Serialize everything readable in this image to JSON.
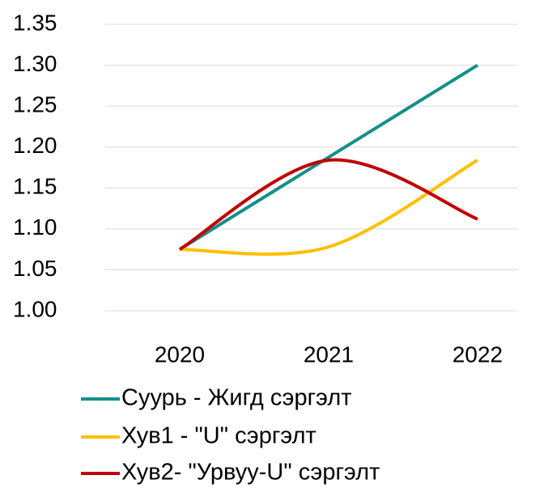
{
  "chart_data": {
    "type": "line",
    "categories": [
      "2020",
      "2021",
      "2022"
    ],
    "series": [
      {
        "name": "Суурь - Жигд сэргэлт",
        "color": "#148f8a",
        "values": [
          1.075,
          1.1875,
          1.3
        ]
      },
      {
        "name": "Хув1 - \"U\" сэргэлт",
        "color": "#ffc000",
        "values": [
          1.075,
          1.078,
          1.184
        ]
      },
      {
        "name": "Хув2- \"Урвуу-U\" сэргэлт",
        "color": "#c00000",
        "values": [
          1.075,
          1.184,
          1.112
        ]
      }
    ],
    "ylim": [
      1.0,
      1.35
    ],
    "yticks": [
      {
        "value": 1.0,
        "label": "1.00"
      },
      1.05,
      {
        "value": 1.1,
        "label": "1.10"
      },
      1.15,
      {
        "value": 1.2,
        "label": "1.20"
      },
      1.25,
      {
        "value": 1.3,
        "label": "1.30"
      },
      1.35
    ],
    "grid": true,
    "smooth": true,
    "legend": "bottom"
  }
}
